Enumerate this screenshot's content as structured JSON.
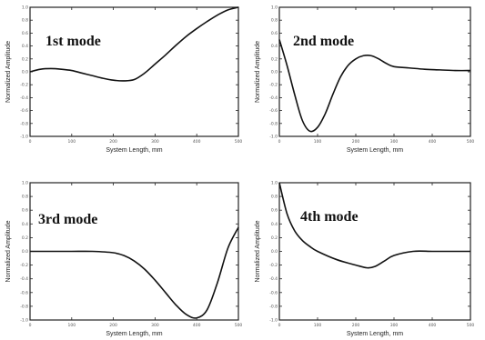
{
  "chart_data": [
    {
      "type": "line",
      "title": "1st mode",
      "xlabel": "System Length, mm",
      "ylabel": "Normalized Amplitude",
      "xlim": [
        0,
        500
      ],
      "ylim": [
        -1,
        1
      ],
      "x_ticks": [
        "0",
        "100",
        "200",
        "300",
        "400",
        "500"
      ],
      "y_ticks": [
        "1.0",
        "0.8",
        "0.6",
        "0.4",
        "0.2",
        "0.0",
        "-0.2",
        "-0.4",
        "-0.6",
        "-0.8",
        "-1.0"
      ],
      "grid": false,
      "series": [
        {
          "x": [
            0,
            25,
            50,
            75,
            100,
            125,
            150,
            175,
            200,
            225,
            250,
            275,
            300,
            325,
            350,
            375,
            400,
            425,
            450,
            475,
            500
          ],
          "y": [
            0.0,
            0.04,
            0.05,
            0.04,
            0.02,
            -0.02,
            -0.06,
            -0.1,
            -0.13,
            -0.14,
            -0.12,
            -0.02,
            0.12,
            0.26,
            0.41,
            0.55,
            0.67,
            0.78,
            0.88,
            0.96,
            1.0
          ]
        }
      ]
    },
    {
      "type": "line",
      "title": "2nd mode",
      "xlabel": "System Length, mm",
      "ylabel": "Normalized Amplitude",
      "xlim": [
        0,
        500
      ],
      "ylim": [
        -1,
        1
      ],
      "x_ticks": [
        "0",
        "100",
        "200",
        "300",
        "400",
        "500"
      ],
      "y_ticks": [
        "1.0",
        "0.8",
        "0.6",
        "0.4",
        "0.2",
        "0.0",
        "-0.2",
        "-0.4",
        "-0.6",
        "-0.8",
        "-1.0"
      ],
      "grid": false,
      "series": [
        {
          "x": [
            0,
            20,
            40,
            60,
            80,
            100,
            120,
            140,
            160,
            180,
            200,
            220,
            240,
            260,
            280,
            300,
            340,
            380,
            420,
            460,
            500
          ],
          "y": [
            0.5,
            0.1,
            -0.35,
            -0.75,
            -0.92,
            -0.86,
            -0.65,
            -0.35,
            -0.08,
            0.1,
            0.2,
            0.25,
            0.25,
            0.2,
            0.13,
            0.08,
            0.06,
            0.04,
            0.03,
            0.02,
            0.02
          ]
        }
      ]
    },
    {
      "type": "line",
      "title": "3rd mode",
      "xlabel": "System Length, mm",
      "ylabel": "Normalized Amplitude",
      "xlim": [
        0,
        500
      ],
      "ylim": [
        -1,
        1
      ],
      "x_ticks": [
        "0",
        "100",
        "200",
        "300",
        "400",
        "500"
      ],
      "y_ticks": [
        "1.0",
        "0.8",
        "0.6",
        "0.4",
        "0.2",
        "0.0",
        "-0.2",
        "-0.4",
        "-0.6",
        "-0.8",
        "-1.0"
      ],
      "grid": false,
      "series": [
        {
          "x": [
            0,
            50,
            100,
            150,
            200,
            225,
            250,
            275,
            300,
            325,
            350,
            375,
            400,
            425,
            450,
            475,
            500
          ],
          "y": [
            0.0,
            0.0,
            0.0,
            0.0,
            -0.02,
            -0.06,
            -0.14,
            -0.26,
            -0.42,
            -0.6,
            -0.78,
            -0.92,
            -0.97,
            -0.85,
            -0.45,
            0.05,
            0.35
          ]
        }
      ]
    },
    {
      "type": "line",
      "title": "4th mode",
      "xlabel": "System Length, mm",
      "ylabel": "Normalized Amplitude",
      "xlim": [
        0,
        500
      ],
      "ylim": [
        -1,
        1
      ],
      "x_ticks": [
        "0",
        "100",
        "200",
        "300",
        "400",
        "500"
      ],
      "y_ticks": [
        "1.0",
        "0.8",
        "0.6",
        "0.4",
        "0.2",
        "0.0",
        "-0.2",
        "-0.4",
        "-0.6",
        "-0.8",
        "-1.0"
      ],
      "grid": false,
      "series": [
        {
          "x": [
            0,
            20,
            40,
            60,
            80,
            100,
            150,
            200,
            230,
            250,
            275,
            300,
            350,
            400,
            450,
            500
          ],
          "y": [
            1.0,
            0.55,
            0.3,
            0.16,
            0.07,
            0.0,
            -0.12,
            -0.2,
            -0.24,
            -0.22,
            -0.14,
            -0.06,
            0.0,
            0.0,
            0.0,
            0.0
          ]
        }
      ]
    }
  ]
}
